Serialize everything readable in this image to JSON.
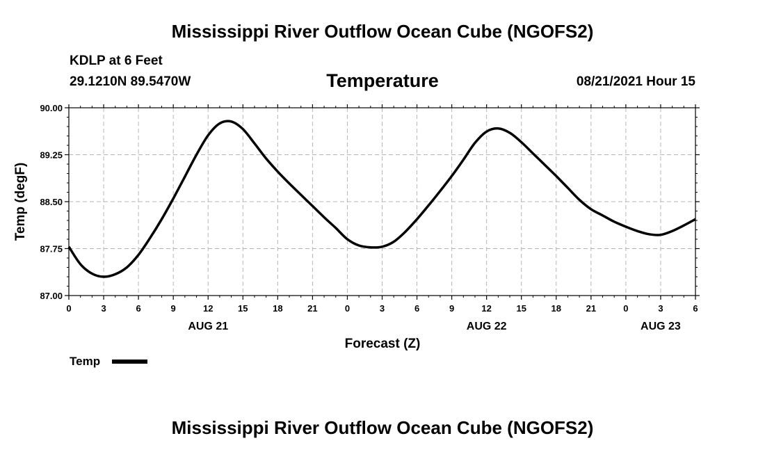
{
  "header": {
    "title": "Mississippi River Outflow Ocean Cube (NGOFS2)",
    "station": "KDLP at 6 Feet",
    "coordinates": "29.1210N  89.5470W",
    "variable": "Temperature",
    "timestamp": "08/21/2021 Hour 15"
  },
  "footer": {
    "title": "Mississippi River Outflow Ocean Cube (NGOFS2)"
  },
  "legend": {
    "label": "Temp",
    "color": "#000000"
  },
  "chart_data": {
    "type": "line",
    "title": "Temperature",
    "xlabel": "Forecast (Z)",
    "ylabel": "Temp (degF)",
    "xlim": [
      0,
      54
    ],
    "ylim": [
      87.0,
      90.0
    ],
    "grid": true,
    "y_ticks": [
      "87.00",
      "87.75",
      "88.50",
      "89.25",
      "90.00"
    ],
    "y_tick_values": [
      87.0,
      87.75,
      88.5,
      89.25,
      90.0
    ],
    "x_tick_labels": [
      "0",
      "3",
      "6",
      "9",
      "12",
      "15",
      "18",
      "21",
      "0",
      "3",
      "6",
      "9",
      "12",
      "15",
      "18",
      "21",
      "0",
      "3",
      "6"
    ],
    "date_labels": [
      {
        "hour": 12,
        "label": "AUG 21"
      },
      {
        "hour": 36,
        "label": "AUG 22"
      },
      {
        "hour": 51,
        "label": "AUG 23"
      }
    ],
    "series": [
      {
        "name": "Temp",
        "x": [
          0,
          1,
          2,
          3,
          4,
          5,
          6,
          7,
          8,
          9,
          10,
          11,
          12,
          13,
          14,
          15,
          16,
          17,
          18,
          19,
          20,
          21,
          22,
          23,
          24,
          25,
          26,
          27,
          28,
          29,
          30,
          31,
          32,
          33,
          34,
          35,
          36,
          37,
          38,
          39,
          40,
          41,
          42,
          43,
          44,
          45,
          46,
          47,
          48,
          49,
          50,
          51,
          52,
          53,
          54
        ],
        "values": [
          87.78,
          87.5,
          87.35,
          87.3,
          87.34,
          87.45,
          87.65,
          87.92,
          88.22,
          88.55,
          88.9,
          89.25,
          89.56,
          89.75,
          89.78,
          89.66,
          89.43,
          89.19,
          88.98,
          88.79,
          88.61,
          88.43,
          88.25,
          88.08,
          87.9,
          87.8,
          87.77,
          87.78,
          87.86,
          88.02,
          88.22,
          88.44,
          88.67,
          88.91,
          89.17,
          89.44,
          89.62,
          89.67,
          89.6,
          89.45,
          89.27,
          89.09,
          88.91,
          88.72,
          88.53,
          88.38,
          88.28,
          88.18,
          88.1,
          88.03,
          87.98,
          87.97,
          88.03,
          88.12,
          88.22
        ]
      }
    ]
  }
}
